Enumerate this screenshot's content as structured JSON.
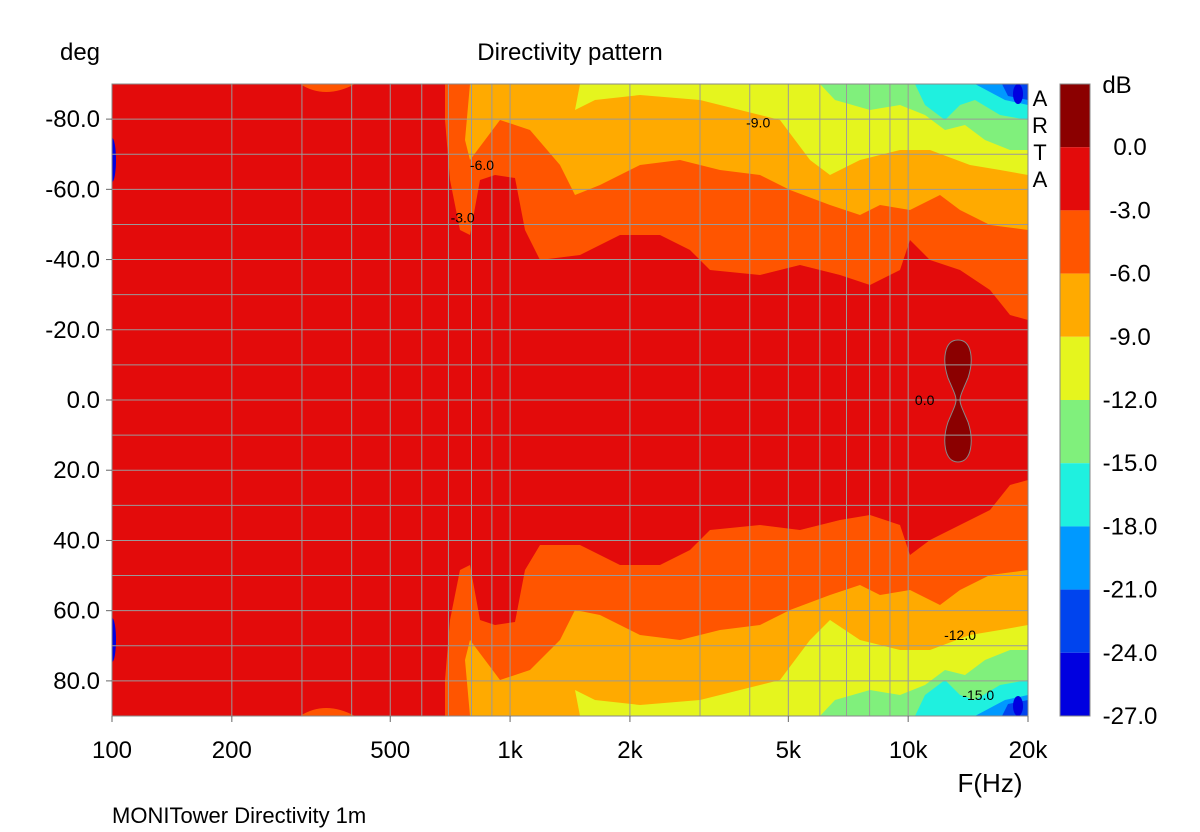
{
  "chart_data": {
    "type": "heatmap",
    "title": "Directivity pattern",
    "ylabel": "deg",
    "xlabel": "F(Hz)",
    "x_scale": "log",
    "xlim": [
      100,
      20000
    ],
    "ylim": [
      -90,
      90
    ],
    "x_ticks": [
      100,
      200,
      500,
      1000,
      2000,
      5000,
      10000,
      20000
    ],
    "x_tick_labels": [
      "100",
      "200",
      "500",
      "1k",
      "2k",
      "5k",
      "10k",
      "20k"
    ],
    "y_ticks": [
      -80,
      -60,
      -40,
      -20,
      0,
      20,
      40,
      60,
      80
    ],
    "y_tick_labels": [
      "-80.0",
      "-60.0",
      "-40.0",
      "-20.0",
      "0.0",
      "20.0",
      "40.0",
      "60.0",
      "80.0"
    ],
    "grid": true,
    "colorbar": {
      "unit": "dB",
      "levels": [
        "0.0",
        "-3.0",
        "-6.0",
        "-9.0",
        "-12.0",
        "-15.0",
        "-18.0",
        "-21.0",
        "-24.0",
        "-27.0"
      ],
      "colors": [
        "#8b0000",
        "#e30b0b",
        "#ff5500",
        "#ffaa00",
        "#e5f51e",
        "#80f07c",
        "#1ff0df",
        "#0099ff",
        "#0044ee",
        "#0000e0"
      ]
    },
    "contour_labels": [
      {
        "text": "-9.0",
        "freq": 4200,
        "deg": -79
      },
      {
        "text": "-6.0",
        "freq": 850,
        "deg": -67
      },
      {
        "text": "-3.0",
        "freq": 760,
        "deg": -52
      },
      {
        "text": "0.0",
        "freq": 11000,
        "deg": 0
      },
      {
        "text": "-12.0",
        "freq": 13500,
        "deg": 67
      },
      {
        "text": "-15.0",
        "freq": 15000,
        "deg": 84
      }
    ],
    "watermark": [
      "A",
      "R",
      "T",
      "A"
    ],
    "caption": "MONITower Directivity 1m"
  }
}
